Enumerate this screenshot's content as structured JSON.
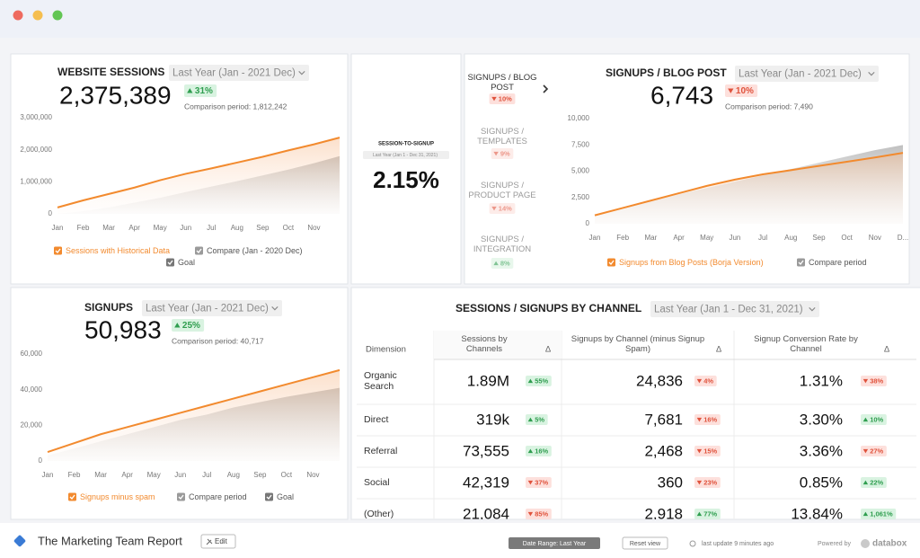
{
  "website_sessions": {
    "title": "WEBSITE SESSIONS",
    "date_range": "Last Year (Jan - 2021 Dec)",
    "value": "2,375,389",
    "change": {
      "text": "31%",
      "direction": "up"
    },
    "comparison": "Comparison period: 1,812,242",
    "chart": {
      "type": "line",
      "categories": [
        "Jan",
        "Feb",
        "Mar",
        "Apr",
        "May",
        "Jun",
        "Jul",
        "Aug",
        "Sep",
        "Oct",
        "Nov",
        null
      ],
      "series": [
        {
          "name": "Sessions with Historical Data",
          "color": "#f28a2e",
          "values": [
            200000,
            420000,
            620000,
            820000,
            1050000,
            1250000,
            1420000,
            1600000,
            1780000,
            1980000,
            2170000,
            2380000
          ]
        },
        {
          "name": "Compare (Jan - 2020 Dec)",
          "color": "#9a9a9a",
          "style": "area",
          "values": [
            0,
            80000,
            200000,
            350000,
            500000,
            680000,
            850000,
            1020000,
            1200000,
            1380000,
            1580000,
            1800000
          ]
        }
      ],
      "legend_extra": [
        {
          "name": "Goal",
          "color": "#777777"
        }
      ],
      "ylim": [
        0,
        3000000
      ],
      "yticks": [
        0,
        {
          "value": 1000000,
          "label": "1,000,000"
        },
        {
          "value": 2000000,
          "label": "2,000,000"
        },
        {
          "value": 3000000,
          "label": "3,000,000"
        }
      ]
    }
  },
  "session_to_signup": {
    "title": "SESSION-TO-SIGNUP",
    "date_range": "Last Year (Jan 1 - Dec 31, 2021)",
    "value": "2.15%"
  },
  "signups_blog_post": {
    "metrics": [
      {
        "label": "SIGNUPS / BLOG POST",
        "change": {
          "text": "10%",
          "direction": "down"
        }
      },
      {
        "label": "SIGNUPS / TEMPLATES",
        "change": {
          "text": "9%",
          "direction": "down"
        }
      },
      {
        "label": "SIGNUPS / PRODUCT PAGE",
        "change": {
          "text": "14%",
          "direction": "down"
        }
      },
      {
        "label": "SIGNUPS / INTEGRATION",
        "change": {
          "text": "8%",
          "direction": "up"
        }
      }
    ],
    "title": "SIGNUPS / BLOG POST",
    "date_range": "Last Year (Jan - 2021 Dec)",
    "value": "6,743",
    "change": {
      "text": "10%",
      "direction": "down"
    },
    "comparison": "Comparison period: 7,490",
    "chart": {
      "type": "line",
      "categories": [
        "Jan",
        "Feb",
        "Mar",
        "Apr",
        "May",
        "Jun",
        "Jul",
        "Aug",
        "Sep",
        "Oct",
        "Nov",
        "D..."
      ],
      "series": [
        {
          "name": "Signups from Blog Posts (Borja Version)",
          "color": "#f28a2e",
          "values": [
            800,
            1500,
            2200,
            2900,
            3600,
            4200,
            4700,
            5100,
            5500,
            5900,
            6300,
            6743
          ]
        },
        {
          "name": "Compare period",
          "color": "#9a9a9a",
          "style": "area",
          "values": [
            700,
            1400,
            2100,
            2800,
            3400,
            4000,
            4600,
            5200,
            5800,
            6400,
            7000,
            7490
          ]
        }
      ],
      "ylim": [
        0,
        10000
      ],
      "yticks": [
        0,
        {
          "value": 2500,
          "label": "2,500"
        },
        {
          "value": 5000,
          "label": "5,000"
        },
        {
          "value": 7500,
          "label": "7,500"
        },
        {
          "value": 10000,
          "label": "10,000"
        }
      ]
    }
  },
  "signups": {
    "title": "SIGNUPS",
    "date_range": "Last Year (Jan - 2021 Dec)",
    "value": "50,983",
    "change": {
      "text": "25%",
      "direction": "up"
    },
    "comparison": "Comparison period: 40,717",
    "chart": {
      "type": "line",
      "categories": [
        "Jan",
        "Feb",
        "Mar",
        "Apr",
        "May",
        "Jun",
        "Jul",
        "Aug",
        "Sep",
        "Oct",
        "Nov",
        null
      ],
      "series": [
        {
          "name": "Signups minus spam",
          "color": "#f28a2e",
          "values": [
            5000,
            10000,
            15000,
            19000,
            23000,
            27000,
            31000,
            35000,
            39000,
            43000,
            47000,
            51000
          ]
        },
        {
          "name": "Compare period",
          "color": "#9a9a9a",
          "style": "area",
          "values": [
            3000,
            7000,
            11000,
            15000,
            19000,
            23000,
            26000,
            30000,
            33000,
            36000,
            38500,
            41000
          ]
        }
      ],
      "legend_extra": [
        {
          "name": "Goal",
          "color": "#777777"
        }
      ],
      "ylim": [
        0,
        60000
      ],
      "yticks": [
        0,
        {
          "value": 20000,
          "label": "20,000"
        },
        {
          "value": 40000,
          "label": "40,000"
        },
        {
          "value": 60000,
          "label": "60,000"
        }
      ]
    }
  },
  "channel_table": {
    "title": "SESSIONS / SIGNUPS BY CHANNEL",
    "date_range": "Last Year (Jan 1 - Dec 31, 2021)",
    "columns": [
      "Dimension",
      "Sessions by Channels",
      "Δ",
      "Signups by Channel (minus Signup Spam)",
      "Δ",
      "Signup Conversion Rate by Channel",
      "Δ"
    ],
    "rows": [
      [
        "Organic Search",
        "1.89M",
        {
          "text": "55%",
          "direction": "up"
        },
        "24,836",
        {
          "text": "4%",
          "direction": "down"
        },
        "1.31%",
        {
          "text": "38%",
          "direction": "down"
        }
      ],
      [
        "Direct",
        "319k",
        {
          "text": "5%",
          "direction": "up"
        },
        "7,681",
        {
          "text": "16%",
          "direction": "down"
        },
        "3.30%",
        {
          "text": "10%",
          "direction": "up"
        }
      ],
      [
        "Referral",
        "73,555",
        {
          "text": "16%",
          "direction": "up"
        },
        "2,468",
        {
          "text": "15%",
          "direction": "down"
        },
        "3.36%",
        {
          "text": "27%",
          "direction": "down"
        }
      ],
      [
        "Social",
        "42,319",
        {
          "text": "37%",
          "direction": "down"
        },
        "360",
        {
          "text": "23%",
          "direction": "down"
        },
        "0.85%",
        {
          "text": "22%",
          "direction": "up"
        }
      ],
      [
        "(Other)",
        "21,084",
        {
          "text": "85%",
          "direction": "down"
        },
        "2,918",
        {
          "text": "77%",
          "direction": "up"
        },
        "13.84%",
        {
          "text": "1,061%",
          "direction": "up"
        }
      ]
    ]
  },
  "footer": {
    "report_name": "The Marketing Team Report",
    "edit": "Edit",
    "date_range": "Date Range: Last Year",
    "reset": "Reset view",
    "last_update": "last update 9 minutes ago",
    "powered_by": "Powered by",
    "brand": "databox"
  }
}
